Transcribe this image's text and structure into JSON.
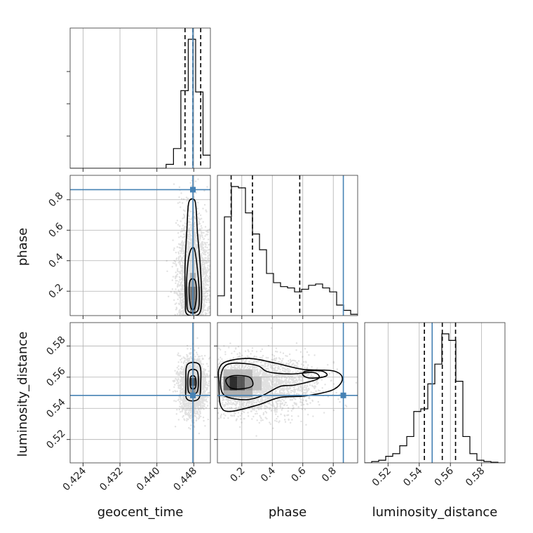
{
  "chart_data": {
    "type": "corner",
    "parameters": [
      "geocent_time",
      "phase",
      "luminosity_distance"
    ],
    "axis_labels": {
      "geocent_time": "geocent_time",
      "phase": "phase",
      "luminosity_distance": "luminosity_distance"
    },
    "ranges": {
      "geocent_time": [
        0.4212,
        0.4516
      ],
      "phase": [
        0.04,
        0.96
      ],
      "luminosity_distance": [
        0.505,
        0.595
      ]
    },
    "ticks": {
      "geocent_time": [
        {
          "v": 0.424,
          "label": "0.424"
        },
        {
          "v": 0.432,
          "label": "0.432"
        },
        {
          "v": 0.44,
          "label": "0.440"
        },
        {
          "v": 0.448,
          "label": "0.448"
        }
      ],
      "phase": [
        {
          "v": 0.2,
          "label": "0.2"
        },
        {
          "v": 0.4,
          "label": "0.4"
        },
        {
          "v": 0.6,
          "label": "0.6"
        },
        {
          "v": 0.8,
          "label": "0.8"
        }
      ],
      "luminosity_distance": [
        {
          "v": 0.52,
          "label": "0.52"
        },
        {
          "v": 0.54,
          "label": "0.54"
        },
        {
          "v": 0.56,
          "label": "0.56"
        },
        {
          "v": 0.58,
          "label": "0.58"
        }
      ]
    },
    "truths": {
      "geocent_time": 0.4478,
      "phase": 0.866,
      "luminosity_distance": 0.5483
    },
    "quantiles": {
      "geocent_time": [
        0.4461,
        0.4478,
        0.4495
      ],
      "phase": [
        0.13,
        0.27,
        0.58
      ],
      "luminosity_distance": [
        0.5433,
        0.5548,
        0.5633
      ]
    },
    "histograms": {
      "geocent_time": {
        "edges": [
          0.4212,
          0.4228,
          0.4244,
          0.426,
          0.4276,
          0.4292,
          0.4308,
          0.4324,
          0.434,
          0.4356,
          0.4372,
          0.4388,
          0.4404,
          0.442,
          0.4436,
          0.4452,
          0.4468,
          0.4484,
          0.45,
          0.4516
        ],
        "counts": [
          0,
          0,
          0,
          0,
          0,
          0,
          0,
          0,
          0,
          0,
          0,
          0,
          0,
          0.03,
          0.15,
          0.59,
          0.98,
          0.58,
          0.1
        ]
      },
      "phase": {
        "edges": [
          0.04,
          0.086,
          0.132,
          0.178,
          0.224,
          0.27,
          0.316,
          0.362,
          0.408,
          0.454,
          0.5,
          0.546,
          0.592,
          0.638,
          0.684,
          0.73,
          0.776,
          0.822,
          0.868,
          0.914,
          0.96
        ],
        "counts": [
          0.15,
          0.75,
          0.98,
          0.97,
          0.78,
          0.62,
          0.5,
          0.32,
          0.25,
          0.22,
          0.21,
          0.18,
          0.2,
          0.23,
          0.24,
          0.21,
          0.18,
          0.08,
          0.04,
          0.01
        ]
      },
      "luminosity_distance": {
        "edges": [
          0.505,
          0.5095,
          0.514,
          0.5185,
          0.523,
          0.5275,
          0.532,
          0.5365,
          0.541,
          0.5455,
          0.55,
          0.5545,
          0.559,
          0.5635,
          0.568,
          0.5725,
          0.577,
          0.5815,
          0.586,
          0.5905,
          0.595
        ],
        "counts": [
          0,
          0.01,
          0.02,
          0.05,
          0.07,
          0.13,
          0.2,
          0.39,
          0.41,
          0.6,
          0.75,
          0.98,
          0.93,
          0.62,
          0.2,
          0.07,
          0.02,
          0.01,
          0.005,
          0
        ]
      }
    },
    "pairs": [
      {
        "x": "geocent_time",
        "y": "phase",
        "centre": [
          0.4478,
          0.24
        ],
        "spread": [
          0.00165,
          0.16
        ],
        "skew": 0.45,
        "samples": 2600,
        "density_cells": [
          {
            "x0": 0.4472,
            "x1": 0.4484,
            "y0": 0.05,
            "y1": 0.14,
            "w": 0.55
          },
          {
            "x0": 0.4472,
            "x1": 0.4484,
            "y0": 0.14,
            "y1": 0.23,
            "w": 0.6
          },
          {
            "x0": 0.446,
            "x1": 0.4472,
            "y0": 0.08,
            "y1": 0.23,
            "w": 0.25
          },
          {
            "x0": 0.4484,
            "x1": 0.4496,
            "y0": 0.08,
            "y1": 0.23,
            "w": 0.25
          },
          {
            "x0": 0.4472,
            "x1": 0.4484,
            "y0": 0.23,
            "y1": 0.32,
            "w": 0.35
          }
        ],
        "contours": [
          [
            [
              0.447,
              0.18
            ],
            [
              0.4474,
              0.09
            ],
            [
              0.4482,
              0.09
            ],
            [
              0.4486,
              0.18
            ],
            [
              0.4483,
              0.27
            ],
            [
              0.4472,
              0.27
            ]
          ],
          [
            [
              0.4465,
              0.16
            ],
            [
              0.4468,
              0.07
            ],
            [
              0.4488,
              0.07
            ],
            [
              0.4492,
              0.17
            ],
            [
              0.4488,
              0.34
            ],
            [
              0.4481,
              0.48
            ],
            [
              0.4471,
              0.45
            ],
            [
              0.4465,
              0.3
            ]
          ],
          [
            [
              0.4462,
              0.14
            ],
            [
              0.4465,
              0.05
            ],
            [
              0.4491,
              0.05
            ],
            [
              0.4497,
              0.15
            ],
            [
              0.4494,
              0.37
            ],
            [
              0.4488,
              0.58
            ],
            [
              0.4485,
              0.74
            ],
            [
              0.4481,
              0.8
            ],
            [
              0.4469,
              0.78
            ],
            [
              0.4465,
              0.6
            ],
            [
              0.4461,
              0.36
            ]
          ]
        ]
      },
      {
        "x": "geocent_time",
        "y": "luminosity_distance",
        "centre": [
          0.4478,
          0.5545
        ],
        "spread": [
          0.0014,
          0.0085
        ],
        "skew": 0,
        "samples": 2600,
        "density_cells": [
          {
            "x0": 0.4472,
            "x1": 0.4484,
            "y0": 0.5545,
            "y1": 0.5595,
            "w": 0.8
          },
          {
            "x0": 0.4472,
            "x1": 0.4484,
            "y0": 0.5495,
            "y1": 0.5545,
            "w": 0.45
          },
          {
            "x0": 0.446,
            "x1": 0.4472,
            "y0": 0.5495,
            "y1": 0.5595,
            "w": 0.28
          },
          {
            "x0": 0.4484,
            "x1": 0.4496,
            "y0": 0.5495,
            "y1": 0.5595,
            "w": 0.28
          }
        ],
        "contours": [
          [
            [
              0.4472,
              0.557
            ],
            [
              0.4474,
              0.553
            ],
            [
              0.4483,
              0.553
            ],
            [
              0.4485,
              0.557
            ],
            [
              0.4482,
              0.5605
            ],
            [
              0.4474,
              0.5605
            ]
          ],
          [
            [
              0.4467,
              0.556
            ],
            [
              0.447,
              0.55
            ],
            [
              0.4486,
              0.55
            ],
            [
              0.449,
              0.556
            ],
            [
              0.4487,
              0.564
            ],
            [
              0.447,
              0.564
            ]
          ],
          [
            [
              0.4463,
              0.556
            ],
            [
              0.4465,
              0.546
            ],
            [
              0.449,
              0.546
            ],
            [
              0.4495,
              0.556
            ],
            [
              0.4492,
              0.568
            ],
            [
              0.4466,
              0.568
            ]
          ]
        ]
      },
      {
        "x": "phase",
        "y": "luminosity_distance",
        "centre": [
          0.27,
          0.5548
        ],
        "spread": [
          0.2,
          0.009
        ],
        "skew": 0,
        "samples": 3200,
        "density_cells": [
          {
            "x0": 0.08,
            "x1": 0.12,
            "y0": 0.5515,
            "y1": 0.5605,
            "w": 0.65
          },
          {
            "x0": 0.12,
            "x1": 0.17,
            "y0": 0.5515,
            "y1": 0.5605,
            "w": 0.95
          },
          {
            "x0": 0.17,
            "x1": 0.22,
            "y0": 0.5515,
            "y1": 0.5605,
            "w": 0.75
          },
          {
            "x0": 0.22,
            "x1": 0.27,
            "y0": 0.5515,
            "y1": 0.5605,
            "w": 0.45
          },
          {
            "x0": 0.27,
            "x1": 0.33,
            "y0": 0.5515,
            "y1": 0.5605,
            "w": 0.28
          },
          {
            "x0": 0.08,
            "x1": 0.27,
            "y0": 0.547,
            "y1": 0.5515,
            "w": 0.35
          },
          {
            "x0": 0.08,
            "x1": 0.27,
            "y0": 0.5605,
            "y1": 0.565,
            "w": 0.3
          }
        ],
        "contours": [
          [
            [
              0.1,
              0.556
            ],
            [
              0.13,
              0.553
            ],
            [
              0.2,
              0.5525
            ],
            [
              0.27,
              0.5545
            ],
            [
              0.25,
              0.56
            ],
            [
              0.15,
              0.561
            ],
            [
              0.1,
              0.559
            ]
          ],
          [
            [
              0.06,
              0.556
            ],
            [
              0.09,
              0.548
            ],
            [
              0.22,
              0.5455
            ],
            [
              0.33,
              0.548
            ],
            [
              0.45,
              0.554
            ],
            [
              0.55,
              0.555
            ],
            [
              0.7,
              0.559
            ],
            [
              0.67,
              0.563
            ],
            [
              0.52,
              0.562
            ],
            [
              0.37,
              0.5635
            ],
            [
              0.3,
              0.5675
            ],
            [
              0.15,
              0.569
            ],
            [
              0.08,
              0.566
            ]
          ],
          [
            [
              0.05,
              0.556
            ],
            [
              0.06,
              0.542
            ],
            [
              0.12,
              0.538
            ],
            [
              0.3,
              0.542
            ],
            [
              0.45,
              0.547
            ],
            [
              0.62,
              0.548
            ],
            [
              0.8,
              0.552
            ],
            [
              0.86,
              0.559
            ],
            [
              0.8,
              0.564
            ],
            [
              0.6,
              0.565
            ],
            [
              0.42,
              0.569
            ],
            [
              0.25,
              0.572
            ],
            [
              0.1,
              0.57
            ],
            [
              0.05,
              0.565
            ]
          ],
          [
            [
              0.6,
              0.5615
            ],
            [
              0.64,
              0.5595
            ],
            [
              0.72,
              0.5598
            ],
            [
              0.76,
              0.5615
            ],
            [
              0.72,
              0.564
            ],
            [
              0.62,
              0.5638
            ]
          ]
        ]
      }
    ],
    "grid": true,
    "colors": {
      "truth": "#4682b4",
      "hist": "#000000",
      "contour": "#000000",
      "samples": "#777777",
      "grid": "#b0b0b0"
    }
  }
}
